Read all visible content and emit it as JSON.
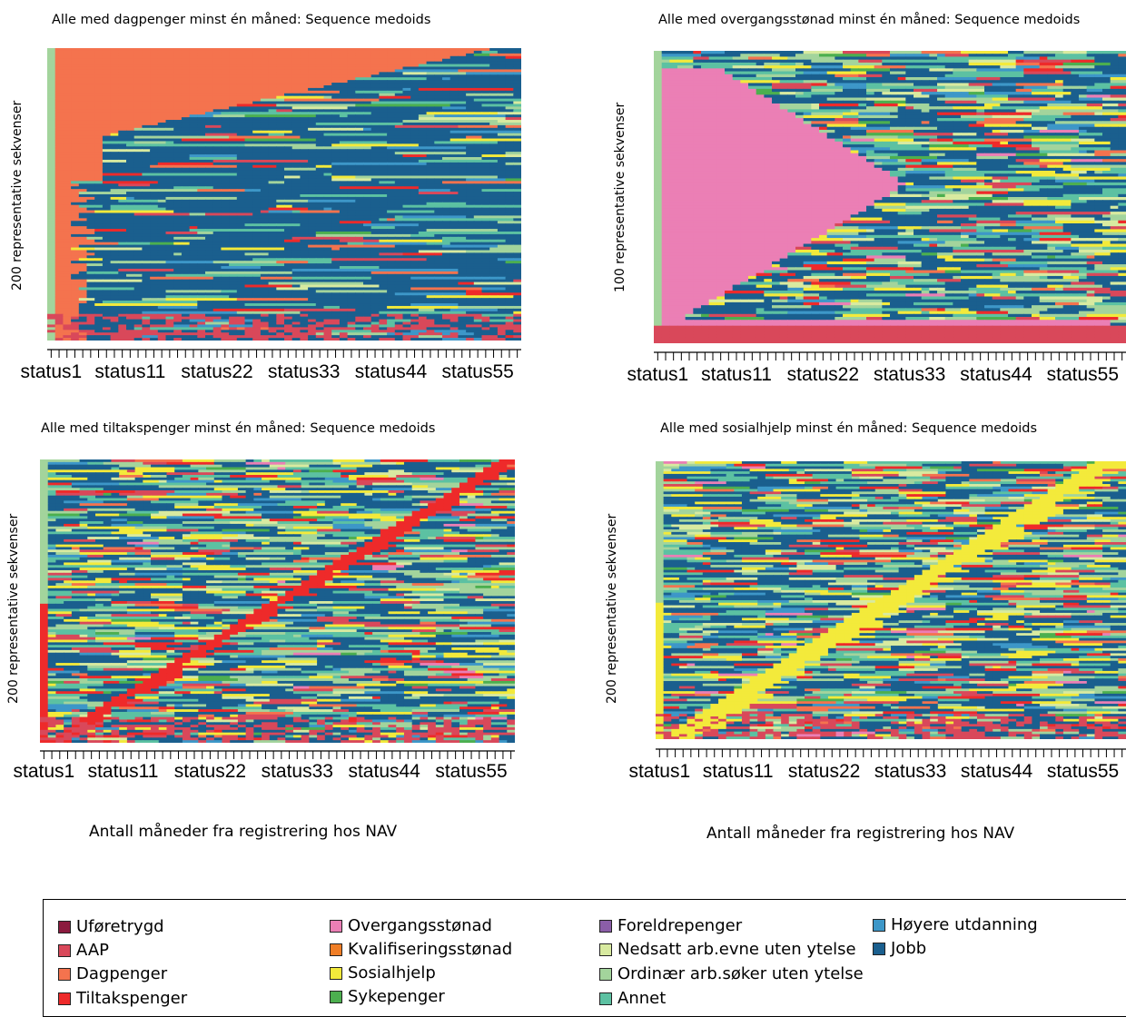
{
  "colors": {
    "Uføretrygd": "#8b1a3e",
    "AAP": "#d9485a",
    "Dagpenger": "#f4734e",
    "Tiltakspenger": "#ee2a2a",
    "Overgangsstønad": "#eb7fb5",
    "Kvalifiseringsstønad": "#f07e26",
    "Sosialhjelp": "#f3ea3b",
    "Sykepenger": "#4caf4f",
    "Foreldrepenger": "#8b5ea8",
    "Nedsatt arb.evne uten ytelse": "#d8eaa0",
    "Ordinær arb.søker uten ytelse": "#a3d49c",
    "Annet": "#5cc1a2",
    "Høyere utdanning": "#3d97c8",
    "Jobb": "#1a5f8e"
  },
  "chart_data": [
    {
      "type": "heatmap",
      "title": "Alle med dagpenger minst én måned: Sequence medoids",
      "ylabel": "200 representative sekvenser",
      "x_tick_labels": [
        "status1",
        "status11",
        "status22",
        "status33",
        "status44",
        "status55"
      ],
      "n_states": 60,
      "n_sequences": 200,
      "focal_state": "Dagpenger",
      "dominant_state": "Jobb"
    },
    {
      "type": "heatmap",
      "title": "Alle med overgangsstønad minst én måned: Sequence medoids",
      "ylabel": "100 representative sekvenser",
      "x_tick_labels": [
        "status1",
        "status11",
        "status22",
        "status33",
        "status44",
        "status55"
      ],
      "n_states": 60,
      "n_sequences": 100,
      "focal_state": "Overgangsstønad",
      "dominant_state": "Jobb"
    },
    {
      "type": "heatmap",
      "title": "Alle med tiltakspenger minst én måned: Sequence medoids",
      "ylabel": "200 representative sekvenser",
      "x_tick_labels": [
        "status1",
        "status11",
        "status22",
        "status33",
        "status44",
        "status55"
      ],
      "n_states": 60,
      "n_sequences": 200,
      "focal_state": "Tiltakspenger",
      "dominant_state": "Jobb"
    },
    {
      "type": "heatmap",
      "title": "Alle med sosialhjelp minst én måned: Sequence medoids",
      "ylabel": "200 representative sekvenser",
      "x_tick_labels": [
        "status1",
        "status11",
        "status22",
        "status33",
        "status44",
        "status55"
      ],
      "n_states": 60,
      "n_sequences": 200,
      "focal_state": "Sosialhjelp",
      "dominant_state": "Jobb"
    }
  ],
  "xaxis_title": "Antall måneder fra registrering hos NAV",
  "legend": {
    "items": [
      "Uføretrygd",
      "AAP",
      "Dagpenger",
      "Tiltakspenger",
      "Overgangsstønad",
      "Kvalifiseringsstønad",
      "Sosialhjelp",
      "Sykepenger",
      "Foreldrepenger",
      "Nedsatt arb.evne uten ytelse",
      "Ordinær arb.søker uten ytelse",
      "Annet",
      "Høyere utdanning",
      "Jobb"
    ]
  }
}
